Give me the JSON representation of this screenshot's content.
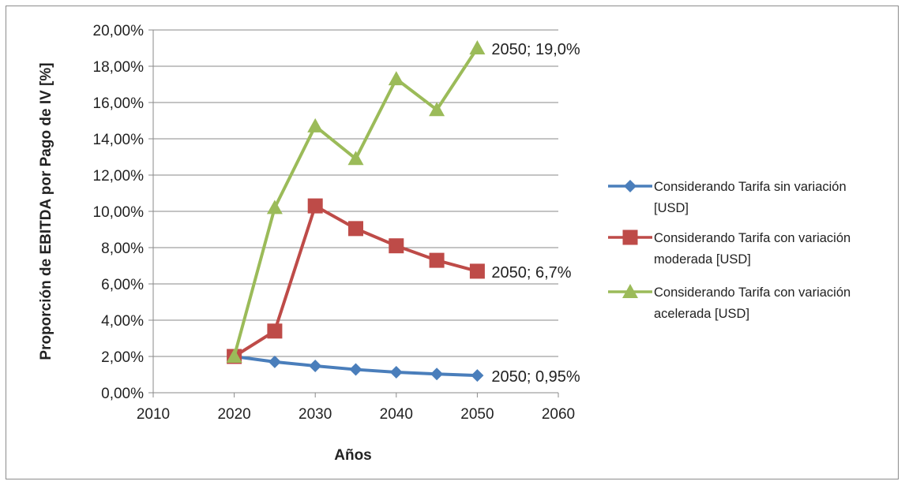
{
  "chart_data": {
    "type": "scatter",
    "xlabel": "Años",
    "ylabel": "Proporción de EBITDA por Pago de IV [%]",
    "xlim": [
      2010,
      2060
    ],
    "ylim": [
      0,
      0.2
    ],
    "xticks": [
      "2010",
      "2020",
      "2030",
      "2040",
      "2050",
      "2060"
    ],
    "yticks": [
      "0,00%",
      "2,00%",
      "4,00%",
      "6,00%",
      "8,00%",
      "10,00%",
      "12,00%",
      "14,00%",
      "16,00%",
      "18,00%",
      "20,00%"
    ],
    "grid": "horizontal",
    "legend_position": "right",
    "series": [
      {
        "name": "Considerando Tarifa sin variación [USD]",
        "legend_lines": [
          "Considerando Tarifa sin variación",
          "[USD]"
        ],
        "color": "#4a7ebb",
        "marker": "diamond",
        "x": [
          2020,
          2025,
          2030,
          2035,
          2040,
          2045,
          2050
        ],
        "y": [
          0.02,
          0.017,
          0.0148,
          0.0128,
          0.0113,
          0.0103,
          0.0095
        ],
        "label": "2050; 0,95%"
      },
      {
        "name": "Considerando Tarifa con variación moderada [USD]",
        "legend_lines": [
          "Considerando Tarifa con variación",
          "moderada [USD]"
        ],
        "color": "#be4b48",
        "marker": "square",
        "x": [
          2020,
          2025,
          2030,
          2035,
          2040,
          2045,
          2050
        ],
        "y": [
          0.02,
          0.034,
          0.103,
          0.0905,
          0.081,
          0.073,
          0.067
        ],
        "label": "2050; 6,7%"
      },
      {
        "name": "Considerando Tarifa con variación acelerada [USD]",
        "legend_lines": [
          "Considerando Tarifa con variación",
          "acelerada [USD]"
        ],
        "color": "#9bbb59",
        "marker": "triangle",
        "x": [
          2020,
          2025,
          2030,
          2035,
          2040,
          2045,
          2050
        ],
        "y": [
          0.02,
          0.102,
          0.147,
          0.129,
          0.173,
          0.156,
          0.19
        ],
        "label": "2050; 19,0%"
      }
    ]
  }
}
